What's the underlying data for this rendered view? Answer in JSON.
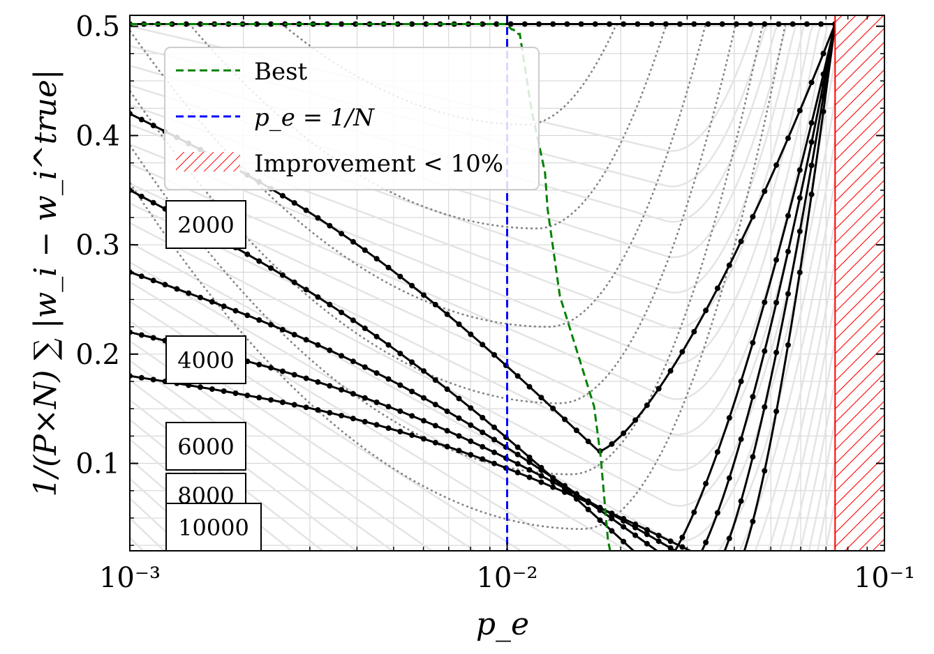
{
  "chart_data": {
    "type": "line",
    "xscale": "log",
    "xlim": [
      0.001,
      0.1
    ],
    "ylim": [
      0.02,
      0.51
    ],
    "grid": true,
    "xlabel": "p_e",
    "ylabel": "1/(P×N) ∑ |w_i − w_i^true|",
    "x_ticks": [
      {
        "value": 0.001,
        "label": "10⁻³"
      },
      {
        "value": 0.01,
        "label": "10⁻²"
      },
      {
        "value": 0.1,
        "label": "10⁻¹"
      }
    ],
    "y_ticks": [
      {
        "value": 0.1,
        "label": "0.1"
      },
      {
        "value": 0.2,
        "label": "0.2"
      },
      {
        "value": 0.3,
        "label": "0.3"
      },
      {
        "value": 0.4,
        "label": "0.4"
      },
      {
        "value": 0.5,
        "label": "0.5"
      }
    ],
    "legend": {
      "position": "upper-left",
      "entries": [
        {
          "label": "Best",
          "color": "#008000",
          "style": "dashed"
        },
        {
          "label": "p_e = 1/N",
          "color": "#0000ff",
          "style": "dashed"
        },
        {
          "label": "Improvement < 10%",
          "color": "#ff0000",
          "style": "hatch"
        }
      ]
    },
    "vline": {
      "x": 0.01,
      "color": "#0000ff"
    },
    "hatch_region": {
      "x_from": 0.074,
      "x_to": 0.1,
      "color": "#ff0000"
    },
    "best_path": {
      "color": "#008000",
      "x": [
        0.001,
        0.0099,
        0.0103,
        0.0104,
        0.0106,
        0.0108,
        0.0116,
        0.0116,
        0.0126,
        0.0126,
        0.0128,
        0.0128,
        0.0138,
        0.0138,
        0.0154,
        0.0154,
        0.017,
        0.017,
        0.0177,
        0.0177,
        0.0185,
        0.0185,
        0.019,
        0.019,
        0.0195,
        0.0195,
        0.0202,
        0.0202
      ],
      "y": [
        0.502,
        0.502,
        0.497,
        0.497,
        0.493,
        0.493,
        0.424,
        0.424,
        0.366,
        0.366,
        0.333,
        0.333,
        0.253,
        0.253,
        0.2,
        0.2,
        0.152,
        0.152,
        0.106,
        0.106,
        0.03,
        0.03,
        0.01,
        0.01,
        0.0,
        0.0,
        0.0,
        0.0
      ]
    },
    "series": [
      {
        "label": "2000",
        "y_at_start": 0.42,
        "y_min": 0.111,
        "x_min": 0.0175,
        "saturation_x": 0.074
      },
      {
        "label": "4000",
        "y_at_start": 0.35,
        "y_min": 0.0,
        "x_min": 0.025,
        "saturation_x": 0.074
      },
      {
        "label": "6000",
        "y_at_start": 0.275,
        "y_min": 0.0,
        "x_min": 0.03,
        "saturation_x": 0.074
      },
      {
        "label": "8000",
        "y_at_start": 0.22,
        "y_min": 0.0,
        "x_min": 0.035,
        "saturation_x": 0.074
      },
      {
        "label": "10000",
        "y_at_start": 0.18,
        "y_min": 0.0,
        "x_min": 0.04,
        "saturation_x": 0.074
      }
    ],
    "box_labels": [
      "2000",
      "4000",
      "6000",
      "8000",
      "10000"
    ],
    "dotted_curves_minima": [
      0.41,
      0.315,
      0.225,
      0.155,
      0.09,
      0.04
    ]
  }
}
